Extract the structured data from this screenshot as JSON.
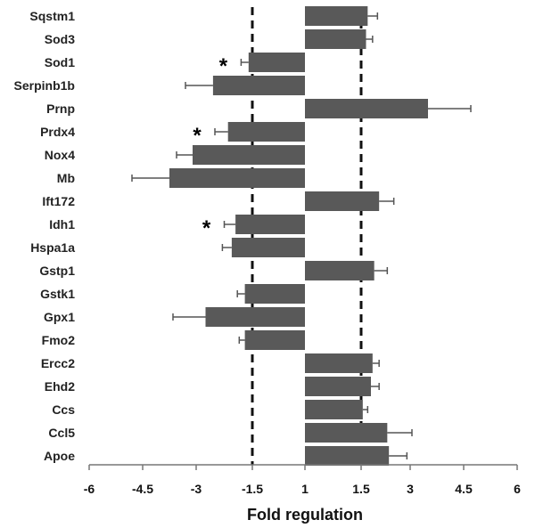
{
  "chart_data": {
    "type": "bar",
    "orientation": "horizontal",
    "xlabel": "Fold regulation",
    "ylabel": "",
    "x_ticks": [
      "-6",
      "-4.5",
      "-3",
      "-1.5",
      "1",
      "1.5",
      "3",
      "4.5",
      "6"
    ],
    "x_tick_values": [
      -6,
      -4.5,
      -3,
      -1.5,
      0,
      1.5,
      3,
      4.5,
      6
    ],
    "xlim": [
      -6,
      6
    ],
    "threshold_lines": [
      -1.5,
      1.5
    ],
    "bar_color": "#595959",
    "grid": false,
    "categories": [
      "Sqstm1",
      "Sod3",
      "Sod1",
      "Serpinb1b",
      "Prnp",
      "Prdx4",
      "Nox4",
      "Mb",
      "Ift172",
      "Idh1",
      "Hspa1a",
      "Gstp1",
      "Gstk1",
      "Gpx1",
      "Fmo2",
      "Ercc2",
      "Ehd2",
      "Ccs",
      "Ccl5",
      "Apoe"
    ],
    "values": [
      1.7,
      1.65,
      -1.6,
      -2.55,
      3.5,
      -2.15,
      -3.1,
      -3.75,
      2.05,
      -1.95,
      -2.05,
      1.9,
      -1.7,
      -2.75,
      -1.7,
      1.85,
      1.8,
      1.55,
      2.3,
      2.35
    ],
    "errors": [
      0.3,
      0.2,
      0.2,
      0.75,
      1.2,
      0.35,
      0.45,
      1.05,
      0.45,
      0.3,
      0.25,
      0.4,
      0.2,
      0.9,
      0.15,
      0.2,
      0.25,
      0.15,
      0.75,
      0.55
    ],
    "significant": [
      false,
      false,
      true,
      false,
      false,
      true,
      false,
      false,
      false,
      true,
      false,
      false,
      false,
      false,
      false,
      false,
      false,
      false,
      false,
      false
    ],
    "significance_marker": "*"
  }
}
